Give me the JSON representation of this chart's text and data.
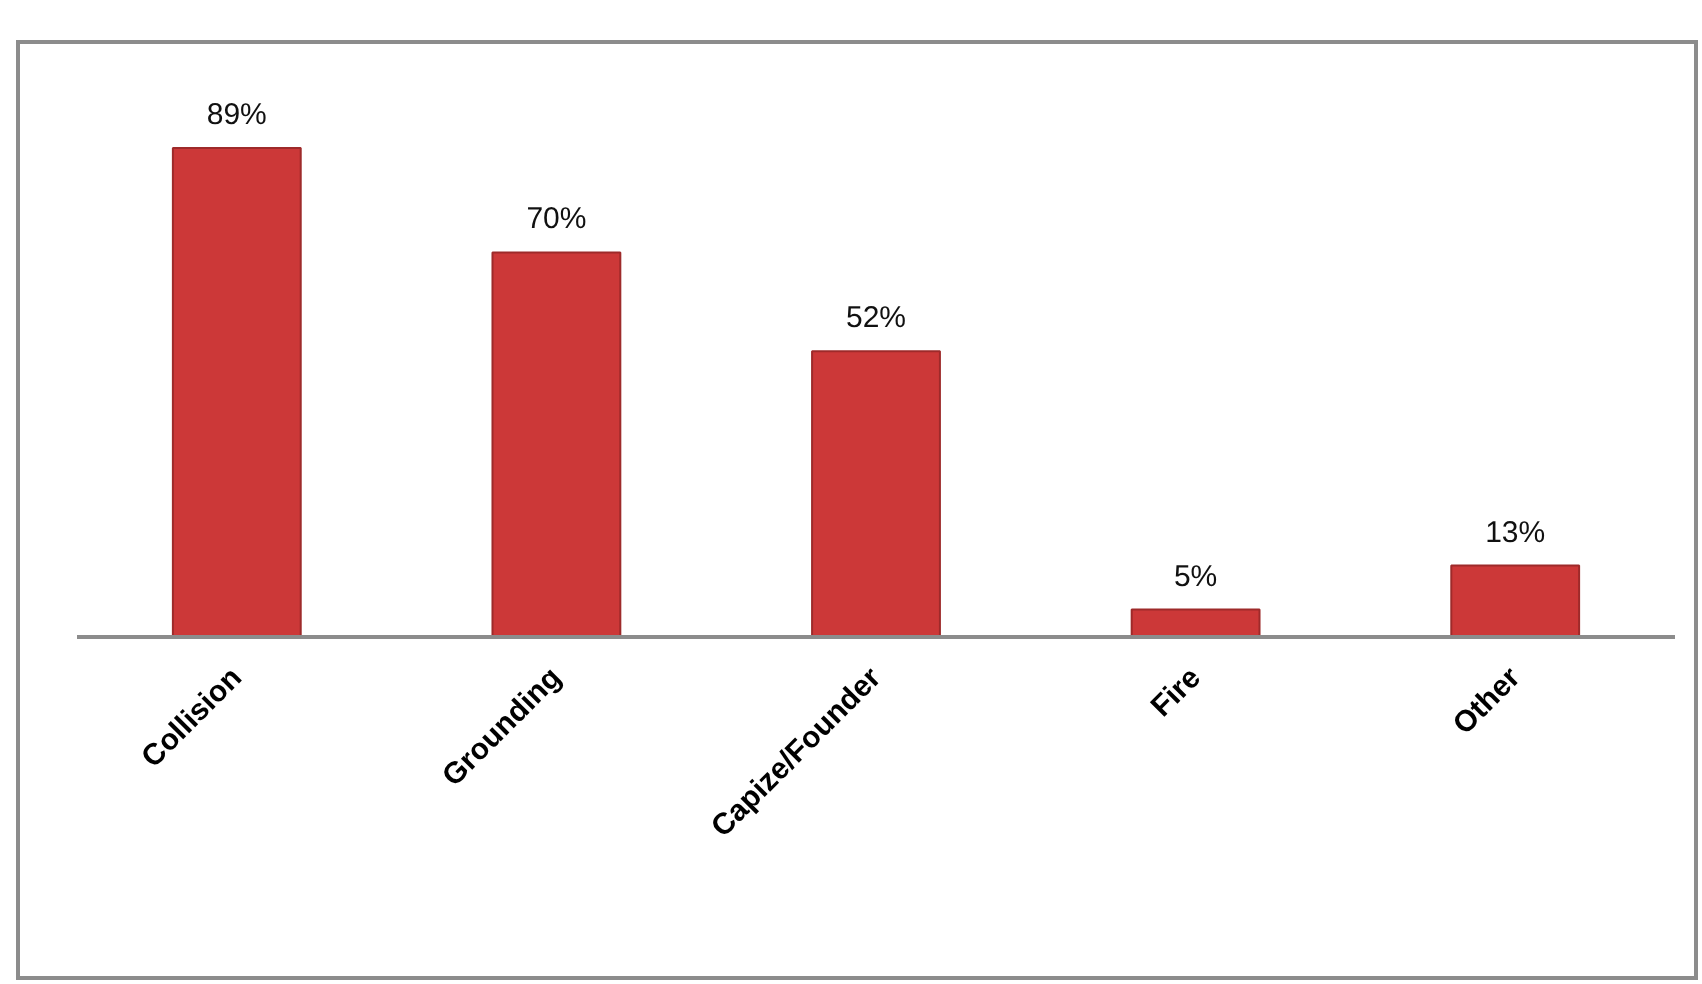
{
  "chart_data": {
    "type": "bar",
    "categories": [
      "Collision",
      "Grounding",
      "Capize/Founder",
      "Fire",
      "Other"
    ],
    "values": [
      89,
      70,
      52,
      5,
      13
    ],
    "color": "#cc3838",
    "value_labels": [
      "89%",
      "70%",
      "52%",
      "5%",
      "13%"
    ]
  }
}
